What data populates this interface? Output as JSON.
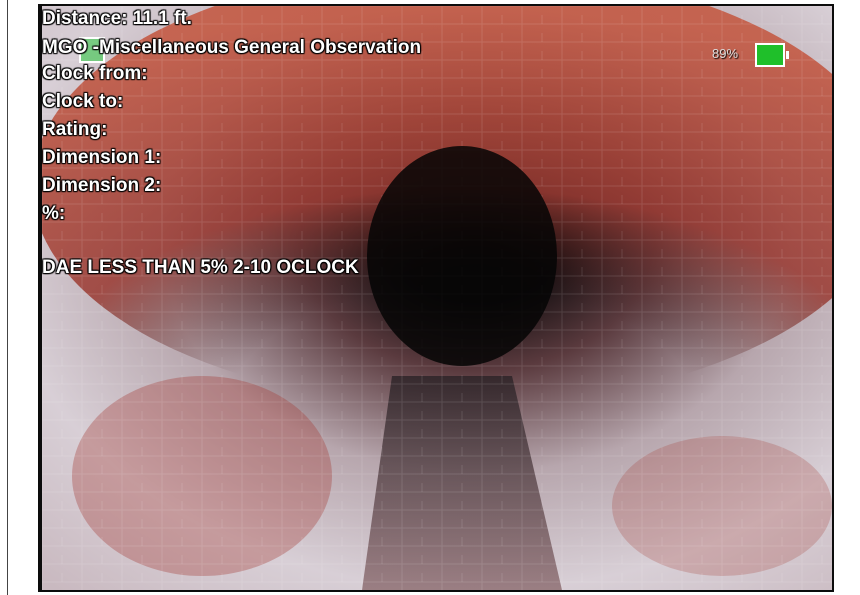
{
  "overlay": {
    "distance": "Distance: 11.1 ft.",
    "code": "MGO -Miscellaneous General Observation",
    "clock_from": "Clock from:",
    "clock_to": "Clock to:",
    "rating": "Rating:",
    "dimension_1": "Dimension 1:",
    "dimension_2": "Dimension 2:",
    "percent": "%:",
    "remark": "DAE LESS THAN 5% 2-10 OCLOCK",
    "battery": "89%"
  }
}
